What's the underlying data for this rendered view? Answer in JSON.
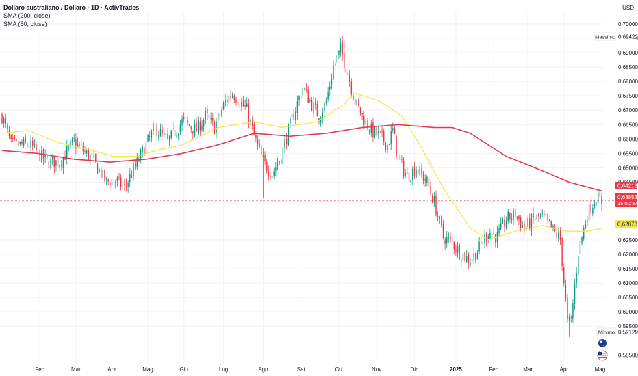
{
  "legend": {
    "title": "Dollaro australiano / Dollaro · 1D · ActivTrades",
    "sma200": "SMA (200, close)",
    "sma50": "SMA (50, close)"
  },
  "axis": {
    "currency": "USD",
    "ticks": [
      "0,70000",
      "0,69500",
      "0,69000",
      "0,68500",
      "0,68000",
      "0,67500",
      "0,67000",
      "0,66500",
      "0,66000",
      "0,65500",
      "0,65000",
      "0,64500",
      "0,62500",
      "0,62000",
      "0,61500",
      "0,61000",
      "0,60500",
      "0,60000",
      "0,59500",
      "0,58500"
    ],
    "tick_values": [
      0.7,
      0.695,
      0.69,
      0.685,
      0.68,
      0.675,
      0.67,
      0.665,
      0.66,
      0.655,
      0.65,
      0.645,
      0.625,
      0.62,
      0.615,
      0.61,
      0.605,
      0.6,
      0.595,
      0.585
    ],
    "months": [
      "Feb",
      "Mar",
      "Apr",
      "Mag",
      "Giu",
      "Lug",
      "Ago",
      "Set",
      "Ott",
      "Nov",
      "Dic",
      "2025",
      "Feb",
      "Mar",
      "Apr",
      "Mag"
    ],
    "month_day_index": [
      21,
      41,
      61,
      81,
      101,
      123,
      145,
      166,
      187,
      208,
      229,
      252,
      273,
      292,
      312,
      332
    ]
  },
  "badges": {
    "massimo_label": "Massimo",
    "massimo_value": "0,69422",
    "sma200_value": "0,64213",
    "price_value": "0,63853",
    "countdown": "15:00:37",
    "sma50_value": "0,62873",
    "minimo_label": "Minimo",
    "minimo_value": "0,59129"
  },
  "colors": {
    "up": "#089981",
    "down": "#f23645",
    "sma200": "#e03a4e",
    "sma50": "#f6e64a",
    "price_line": "#f23645",
    "grid": "#f0f3fa",
    "axis_text": "#131722"
  },
  "chart_data": {
    "type": "candlestick",
    "title": "Dollaro australiano / Dollaro · 1D · ActivTrades",
    "ylabel": "USD",
    "ylim": [
      0.582,
      0.704
    ],
    "y_scale": "linear",
    "grid": true,
    "x_range": [
      "Gen 2024",
      "Mag 2025"
    ],
    "last_price": 0.63853,
    "period_high": 0.69422,
    "period_low": 0.59129,
    "sma200_last": 0.64213,
    "sma50_last": 0.62873,
    "close_anchors": [
      [
        0,
        0.668
      ],
      [
        5,
        0.658
      ],
      [
        15,
        0.658
      ],
      [
        25,
        0.652
      ],
      [
        32,
        0.652
      ],
      [
        40,
        0.659
      ],
      [
        50,
        0.653
      ],
      [
        58,
        0.645
      ],
      [
        62,
        0.646
      ],
      [
        68,
        0.643
      ],
      [
        76,
        0.653
      ],
      [
        85,
        0.664
      ],
      [
        92,
        0.659
      ],
      [
        100,
        0.666
      ],
      [
        108,
        0.663
      ],
      [
        113,
        0.668
      ],
      [
        118,
        0.664
      ],
      [
        124,
        0.673
      ],
      [
        128,
        0.676
      ],
      [
        136,
        0.67
      ],
      [
        140,
        0.661
      ],
      [
        145,
        0.652
      ],
      [
        150,
        0.648
      ],
      [
        155,
        0.654
      ],
      [
        160,
        0.665
      ],
      [
        167,
        0.678
      ],
      [
        172,
        0.672
      ],
      [
        176,
        0.668
      ],
      [
        180,
        0.673
      ],
      [
        184,
        0.685
      ],
      [
        188,
        0.691
      ],
      [
        192,
        0.683
      ],
      [
        196,
        0.673
      ],
      [
        200,
        0.668
      ],
      [
        205,
        0.663
      ],
      [
        210,
        0.661
      ],
      [
        214,
        0.658
      ],
      [
        217,
        0.663
      ],
      [
        220,
        0.653
      ],
      [
        225,
        0.647
      ],
      [
        230,
        0.65
      ],
      [
        236,
        0.645
      ],
      [
        240,
        0.638
      ],
      [
        245,
        0.626
      ],
      [
        250,
        0.624
      ],
      [
        255,
        0.62
      ],
      [
        260,
        0.618
      ],
      [
        265,
        0.622
      ],
      [
        270,
        0.628
      ],
      [
        275,
        0.626
      ],
      [
        280,
        0.632
      ],
      [
        285,
        0.634
      ],
      [
        290,
        0.629
      ],
      [
        295,
        0.632
      ],
      [
        300,
        0.633
      ],
      [
        305,
        0.629
      ],
      [
        310,
        0.625
      ],
      [
        314,
        0.596
      ],
      [
        316,
        0.597
      ],
      [
        320,
        0.621
      ],
      [
        325,
        0.634
      ],
      [
        330,
        0.64
      ],
      [
        333,
        0.638
      ]
    ],
    "sma50_anchors": [
      [
        0,
        0.662
      ],
      [
        15,
        0.663
      ],
      [
        30,
        0.659
      ],
      [
        50,
        0.656
      ],
      [
        62,
        0.654
      ],
      [
        75,
        0.654
      ],
      [
        85,
        0.656
      ],
      [
        100,
        0.658
      ],
      [
        120,
        0.664
      ],
      [
        140,
        0.666
      ],
      [
        155,
        0.664
      ],
      [
        175,
        0.666
      ],
      [
        190,
        0.672
      ],
      [
        196,
        0.676
      ],
      [
        210,
        0.673
      ],
      [
        222,
        0.668
      ],
      [
        232,
        0.658
      ],
      [
        245,
        0.643
      ],
      [
        260,
        0.629
      ],
      [
        270,
        0.625
      ],
      [
        285,
        0.628
      ],
      [
        300,
        0.63
      ],
      [
        313,
        0.628
      ],
      [
        325,
        0.628
      ],
      [
        333,
        0.629
      ]
    ],
    "sma200_anchors": [
      [
        0,
        0.656
      ],
      [
        20,
        0.655
      ],
      [
        40,
        0.653
      ],
      [
        60,
        0.652
      ],
      [
        80,
        0.653
      ],
      [
        100,
        0.655
      ],
      [
        120,
        0.658
      ],
      [
        140,
        0.662
      ],
      [
        160,
        0.661
      ],
      [
        180,
        0.662
      ],
      [
        200,
        0.664
      ],
      [
        220,
        0.665
      ],
      [
        240,
        0.664
      ],
      [
        250,
        0.664
      ],
      [
        260,
        0.662
      ],
      [
        270,
        0.658
      ],
      [
        280,
        0.654
      ],
      [
        300,
        0.649
      ],
      [
        315,
        0.645
      ],
      [
        333,
        0.642
      ]
    ]
  }
}
